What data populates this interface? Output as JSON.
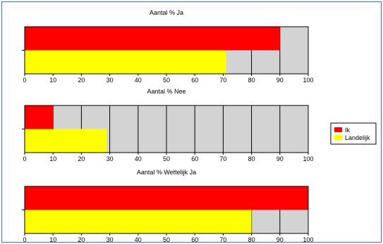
{
  "chart_data": [
    {
      "type": "bar",
      "orientation": "horizontal",
      "title": "Aantal % Ja",
      "xlim": [
        0,
        100
      ],
      "ticks": [
        "0",
        "10",
        "20",
        "30",
        "40",
        "50",
        "60",
        "70",
        "80",
        "90",
        "100"
      ],
      "series": [
        {
          "name": "Ik",
          "value": 90
        },
        {
          "name": "Landelijk",
          "value": 71
        }
      ]
    },
    {
      "type": "bar",
      "orientation": "horizontal",
      "title": "Aantal % Nee",
      "xlim": [
        0,
        100
      ],
      "ticks": [
        "0",
        "10",
        "20",
        "30",
        "40",
        "50",
        "60",
        "70",
        "80",
        "90",
        "100"
      ],
      "series": [
        {
          "name": "Ik",
          "value": 10
        },
        {
          "name": "Landelijk",
          "value": 29
        }
      ]
    },
    {
      "type": "bar",
      "orientation": "horizontal",
      "title": "Aantal % Wettelijk Ja",
      "xlim": [
        0,
        100
      ],
      "ticks": [
        "0",
        "10",
        "20",
        "30",
        "40",
        "50",
        "60",
        "70",
        "80",
        "90",
        "100"
      ],
      "series": [
        {
          "name": "Ik",
          "value": 100
        },
        {
          "name": "Landelijk",
          "value": 80
        }
      ]
    }
  ],
  "legend": {
    "placement": "right",
    "items": [
      {
        "label": "Ik",
        "color": "#ff0000"
      },
      {
        "label": "Landelijk",
        "color": "#ffff00"
      }
    ]
  },
  "colors": {
    "background_bar": "#d3d3d3",
    "ik": "#ff0000",
    "landelijk": "#ffff00"
  }
}
